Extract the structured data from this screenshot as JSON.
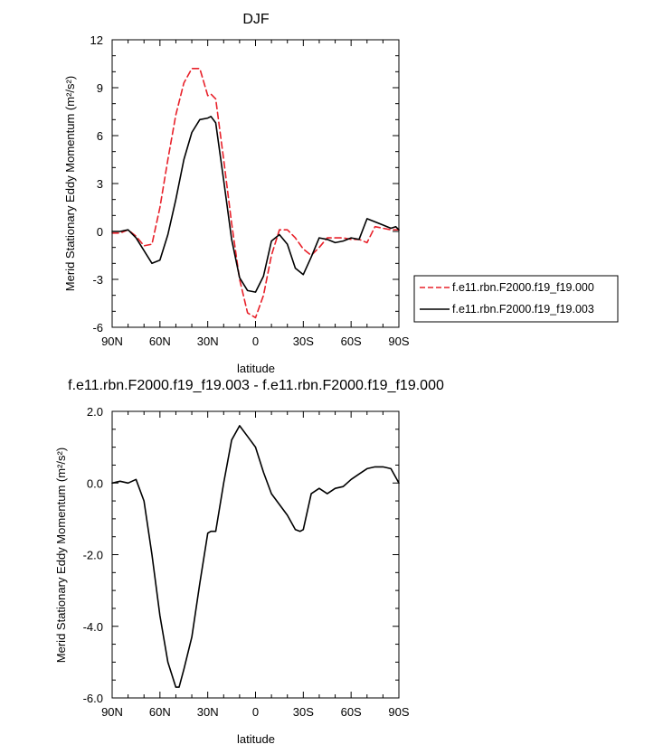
{
  "chart_data": [
    {
      "type": "line",
      "title": "DJF",
      "xlabel": "latitude",
      "ylabel": "Merid Stationary Eddy Momentum (m²/s²)",
      "xlim": [
        90,
        -90
      ],
      "ylim": [
        -6,
        12
      ],
      "xticks": [
        90,
        60,
        30,
        0,
        -30,
        -60,
        -90
      ],
      "xtick_labels": [
        "90N",
        "60N",
        "30N",
        "0",
        "30S",
        "60S",
        "90S"
      ],
      "yticks": [
        -6,
        -3,
        0,
        3,
        6,
        9,
        12
      ],
      "ytick_labels": [
        "-6",
        "-3",
        "0",
        "3",
        "6",
        "9",
        "12"
      ],
      "legend_position": "right",
      "series": [
        {
          "name": "f.e11.rbn.F2000.f19_f19.000",
          "color": "#e8212a",
          "dash": "dashed",
          "x": [
            90,
            85,
            80,
            75,
            70,
            65,
            60,
            55,
            50,
            45,
            40,
            35,
            30,
            28,
            25,
            20,
            15,
            10,
            5,
            0,
            -5,
            -10,
            -15,
            -20,
            -25,
            -30,
            -35,
            -40,
            -45,
            -50,
            -55,
            -60,
            -65,
            -70,
            -75,
            -80,
            -85,
            -90
          ],
          "y": [
            -0.1,
            -0.1,
            0.1,
            -0.3,
            -0.9,
            -0.8,
            1.5,
            4.5,
            7.3,
            9.3,
            10.2,
            10.2,
            8.5,
            8.6,
            8.3,
            4.5,
            0.5,
            -3.0,
            -5.1,
            -5.4,
            -4.0,
            -1.5,
            0.1,
            0.1,
            -0.4,
            -1.1,
            -1.5,
            -1.0,
            -0.4,
            -0.4,
            -0.4,
            -0.5,
            -0.5,
            -0.7,
            0.3,
            0.2,
            0.1,
            0.1
          ]
        },
        {
          "name": "f.e11.rbn.F2000.f19_f19.003",
          "color": "#000000",
          "dash": "solid",
          "x": [
            90,
            85,
            80,
            75,
            70,
            65,
            60,
            55,
            50,
            45,
            40,
            35,
            30,
            28,
            25,
            20,
            15,
            10,
            5,
            0,
            -5,
            -10,
            -15,
            -20,
            -25,
            -30,
            -35,
            -40,
            -45,
            -50,
            -55,
            -60,
            -65,
            -70,
            -75,
            -80,
            -85,
            -88,
            -90
          ],
          "y": [
            0.0,
            0.0,
            0.1,
            -0.4,
            -1.2,
            -2.0,
            -1.8,
            -0.2,
            2.0,
            4.5,
            6.2,
            7.0,
            7.1,
            7.2,
            6.8,
            3.2,
            -0.5,
            -2.9,
            -3.7,
            -3.8,
            -2.8,
            -0.6,
            -0.2,
            -0.8,
            -2.3,
            -2.7,
            -1.6,
            -0.4,
            -0.5,
            -0.7,
            -0.6,
            -0.4,
            -0.5,
            0.8,
            0.6,
            0.4,
            0.2,
            0.3,
            0.1
          ]
        }
      ]
    },
    {
      "type": "line",
      "title": "f.e11.rbn.F2000.f19_f19.003 - f.e11.rbn.F2000.f19_f19.000",
      "xlabel": "latitude",
      "ylabel": "Merid Stationary Eddy Momentum (m²/s²)",
      "xlim": [
        90,
        -90
      ],
      "ylim": [
        -6,
        2
      ],
      "xticks": [
        90,
        60,
        30,
        0,
        -30,
        -60,
        -90
      ],
      "xtick_labels": [
        "90N",
        "60N",
        "30N",
        "0",
        "30S",
        "60S",
        "90S"
      ],
      "yticks": [
        -6,
        -4,
        -2,
        0,
        2
      ],
      "ytick_labels": [
        "-6.0",
        "-4.0",
        "-2.0",
        "0.0",
        "2.0"
      ],
      "series": [
        {
          "color": "#000000",
          "dash": "solid",
          "x": [
            90,
            85,
            80,
            75,
            70,
            65,
            60,
            55,
            50,
            48,
            45,
            40,
            35,
            30,
            28,
            25,
            20,
            15,
            10,
            5,
            0,
            -5,
            -10,
            -15,
            -20,
            -25,
            -28,
            -30,
            -35,
            -40,
            -45,
            -50,
            -55,
            -60,
            -65,
            -70,
            -75,
            -80,
            -85,
            -90
          ],
          "y": [
            0.0,
            0.05,
            0.0,
            0.1,
            -0.5,
            -2.0,
            -3.7,
            -5.0,
            -5.7,
            -5.7,
            -5.2,
            -4.3,
            -2.8,
            -1.4,
            -1.35,
            -1.35,
            0.0,
            1.2,
            1.6,
            1.3,
            1.0,
            0.3,
            -0.3,
            -0.6,
            -0.9,
            -1.3,
            -1.35,
            -1.3,
            -0.3,
            -0.15,
            -0.3,
            -0.15,
            -0.1,
            0.1,
            0.25,
            0.4,
            0.45,
            0.45,
            0.4,
            0.0
          ]
        }
      ]
    }
  ]
}
